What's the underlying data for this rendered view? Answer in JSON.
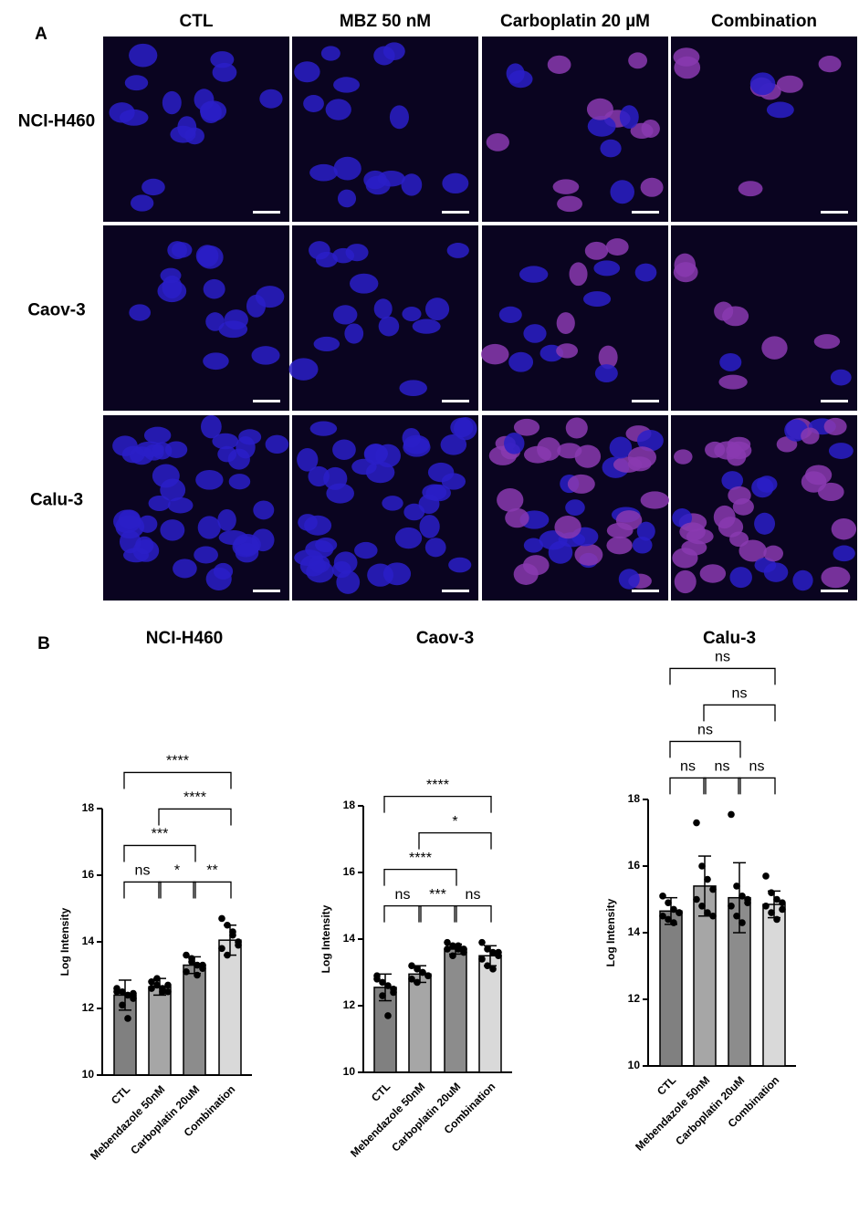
{
  "panel_a": {
    "label": "A",
    "columns": [
      "CTL",
      "MBZ 50 nM",
      "Carboplatin 20 µM",
      "Combination"
    ],
    "rows": [
      "NCI-H460",
      "Caov-3",
      "Calu-3"
    ]
  },
  "panel_b_label": "B",
  "chart_data": [
    {
      "type": "bar",
      "title": "NCI-H460",
      "ylabel": "Log Intensity",
      "categories": [
        "CTL",
        "Mebendazole 50nM",
        "Carboplatin 20uM",
        "Combination"
      ],
      "colors": [
        "#808080",
        "#a6a6a6",
        "#8c8c8c",
        "#d9d9d9"
      ],
      "values": [
        12.4,
        12.65,
        13.3,
        14.05
      ],
      "errors": [
        0.45,
        0.25,
        0.25,
        0.45
      ],
      "points": [
        [
          12.6,
          12.5,
          12.4,
          12.3,
          12.5,
          12.1,
          11.7,
          12.45
        ],
        [
          12.8,
          12.7,
          12.6,
          12.5,
          12.6,
          12.9,
          12.5,
          12.7
        ],
        [
          13.6,
          13.5,
          13.3,
          13.2,
          13.1,
          13.4,
          13.0,
          13.3
        ],
        [
          14.7,
          14.5,
          14.3,
          14.0,
          13.8,
          13.6,
          14.2,
          13.9
        ]
      ],
      "ylim": [
        10,
        18
      ],
      "yticks": [
        10,
        12,
        14,
        16,
        18
      ],
      "comparisons": [
        {
          "from": 0,
          "to": 1,
          "label": "ns"
        },
        {
          "from": 1,
          "to": 2,
          "label": "*"
        },
        {
          "from": 2,
          "to": 3,
          "label": "**"
        },
        {
          "from": 0,
          "to": 2,
          "label": "***"
        },
        {
          "from": 1,
          "to": 3,
          "label": "****"
        },
        {
          "from": 0,
          "to": 3,
          "label": "****"
        }
      ]
    },
    {
      "type": "bar",
      "title": "Caov-3",
      "ylabel": "Log Intensity",
      "categories": [
        "CTL",
        "Mebendazole 50nM",
        "Carboplatin 20uM",
        "Combination"
      ],
      "colors": [
        "#808080",
        "#a6a6a6",
        "#8c8c8c",
        "#d9d9d9"
      ],
      "values": [
        12.55,
        12.95,
        13.7,
        13.5
      ],
      "errors": [
        0.4,
        0.25,
        0.15,
        0.3
      ],
      "points": [
        [
          12.9,
          12.7,
          12.6,
          12.5,
          12.8,
          12.3,
          11.7,
          12.4
        ],
        [
          13.2,
          13.1,
          13.0,
          12.9,
          12.8,
          12.7,
          13.0,
          12.9
        ],
        [
          13.9,
          13.8,
          13.7,
          13.6,
          13.7,
          13.5,
          13.8,
          13.7
        ],
        [
          13.9,
          13.7,
          13.6,
          13.5,
          13.4,
          13.2,
          13.1,
          13.6
        ]
      ],
      "ylim": [
        10,
        18
      ],
      "yticks": [
        10,
        12,
        14,
        16,
        18
      ],
      "comparisons": [
        {
          "from": 0,
          "to": 1,
          "label": "ns"
        },
        {
          "from": 2,
          "to": 3,
          "label": "ns"
        },
        {
          "from": 1,
          "to": 2,
          "label": "***"
        },
        {
          "from": 0,
          "to": 2,
          "label": "****"
        },
        {
          "from": 1,
          "to": 3,
          "label": "*"
        },
        {
          "from": 0,
          "to": 3,
          "label": "****"
        }
      ]
    },
    {
      "type": "bar",
      "title": "Calu-3",
      "ylabel": "Log Intensity",
      "categories": [
        "CTL",
        "Mebendazole 50nM",
        "Carboplatin 20uM",
        "Combination"
      ],
      "colors": [
        "#808080",
        "#a6a6a6",
        "#8c8c8c",
        "#d9d9d9"
      ],
      "values": [
        14.65,
        15.4,
        15.05,
        14.85
      ],
      "errors": [
        0.4,
        0.9,
        1.05,
        0.4
      ],
      "points": [
        [
          15.1,
          14.9,
          14.7,
          14.6,
          14.5,
          14.4,
          14.3,
          14.6
        ],
        [
          17.3,
          16.0,
          15.6,
          15.3,
          15.0,
          14.8,
          14.6,
          14.5
        ],
        [
          17.55,
          15.4,
          15.1,
          15.0,
          14.8,
          14.5,
          14.3,
          14.9
        ],
        [
          15.7,
          15.2,
          15.0,
          14.9,
          14.8,
          14.6,
          14.4,
          14.7
        ]
      ],
      "ylim": [
        10,
        18
      ],
      "yticks": [
        10,
        12,
        14,
        16,
        18
      ],
      "comparisons": [
        {
          "from": 0,
          "to": 1,
          "label": "ns"
        },
        {
          "from": 1,
          "to": 2,
          "label": "ns"
        },
        {
          "from": 2,
          "to": 3,
          "label": "ns"
        },
        {
          "from": 0,
          "to": 2,
          "label": "ns"
        },
        {
          "from": 1,
          "to": 3,
          "label": "ns"
        },
        {
          "from": 0,
          "to": 3,
          "label": "ns"
        }
      ]
    }
  ]
}
